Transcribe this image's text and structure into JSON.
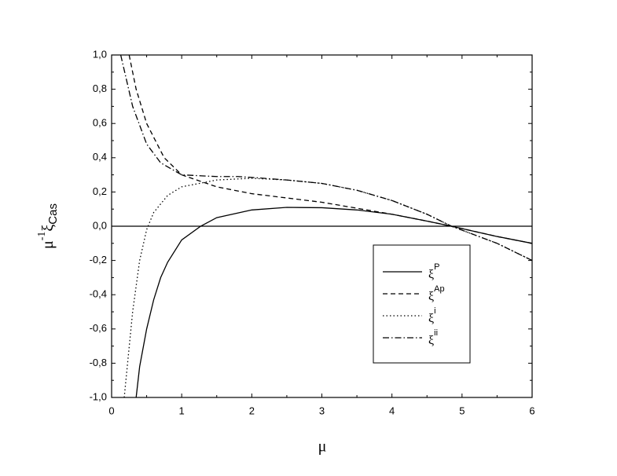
{
  "chart_data": {
    "type": "line",
    "xlabel": "μ",
    "ylabel": {
      "base": "μ",
      "sup": "-1",
      "symbol": "ξ",
      "sub": "Cas"
    },
    "xlim": [
      0,
      6
    ],
    "xticks": [
      0,
      1,
      2,
      3,
      4,
      5,
      6
    ],
    "ylim": [
      -1.0,
      1.0
    ],
    "yticks": [
      {
        "value": -1.0,
        "label": "-1,0"
      },
      {
        "value": -0.8,
        "label": "-0,8"
      },
      {
        "value": -0.6,
        "label": "-0,6"
      },
      {
        "value": -0.4,
        "label": "-0,4"
      },
      {
        "value": -0.2,
        "label": "-0,2"
      },
      {
        "value": 0.0,
        "label": "0,0"
      },
      {
        "value": 0.2,
        "label": "0,2"
      },
      {
        "value": 0.4,
        "label": "0,4"
      },
      {
        "value": 0.6,
        "label": "0,6"
      },
      {
        "value": 0.8,
        "label": "0,8"
      },
      {
        "value": 1.0,
        "label": "1,0"
      }
    ],
    "reference_line": 0,
    "legend": "lower right",
    "series": [
      {
        "name": "ξ",
        "sup": "P",
        "color": "#000000",
        "dash": "solid",
        "x": [
          0.35,
          0.4,
          0.5,
          0.6,
          0.7,
          0.8,
          1.0,
          1.27,
          1.5,
          2.0,
          2.5,
          3.0,
          3.5,
          4.0,
          4.5,
          4.85,
          5.5,
          6.0
        ],
        "values": [
          -1.0,
          -0.82,
          -0.6,
          -0.43,
          -0.3,
          -0.21,
          -0.08,
          0.0,
          0.05,
          0.095,
          0.11,
          0.108,
          0.095,
          0.07,
          0.03,
          0.0,
          -0.06,
          -0.1
        ]
      },
      {
        "name": "ξ",
        "sup": "Ap",
        "color": "#000000",
        "dash": "dashed",
        "x": [
          0.25,
          0.35,
          0.5,
          0.75,
          1.0,
          1.5,
          2.0,
          3.0,
          4.0,
          4.5,
          4.85,
          5.5,
          6.0
        ],
        "values": [
          1.0,
          0.8,
          0.6,
          0.4,
          0.3,
          0.23,
          0.19,
          0.14,
          0.07,
          0.03,
          0.0,
          -0.06,
          -0.1
        ]
      },
      {
        "name": "ξ",
        "sup": "i",
        "color": "#000000",
        "dash": "dotted",
        "x": [
          0.18,
          0.3,
          0.4,
          0.5,
          0.6,
          0.8,
          1.0,
          1.5,
          2.0,
          2.5,
          3.0,
          3.5,
          4.0,
          4.5,
          4.85,
          5.5,
          6.0
        ],
        "values": [
          -1.0,
          -0.5,
          -0.2,
          -0.02,
          0.08,
          0.18,
          0.23,
          0.27,
          0.28,
          0.27,
          0.25,
          0.21,
          0.15,
          0.07,
          0.0,
          -0.1,
          -0.2
        ]
      },
      {
        "name": "ξ",
        "sup": "ii",
        "color": "#000000",
        "dash": "dashdot",
        "x": [
          0.13,
          0.3,
          0.5,
          0.7,
          1.0,
          1.5,
          1.8,
          2.0,
          2.5,
          3.0,
          3.5,
          4.0,
          4.5,
          4.85,
          5.5,
          6.0
        ],
        "values": [
          1.0,
          0.7,
          0.48,
          0.37,
          0.3,
          0.29,
          0.29,
          0.285,
          0.27,
          0.25,
          0.21,
          0.15,
          0.07,
          0.0,
          -0.1,
          -0.2
        ]
      }
    ]
  }
}
